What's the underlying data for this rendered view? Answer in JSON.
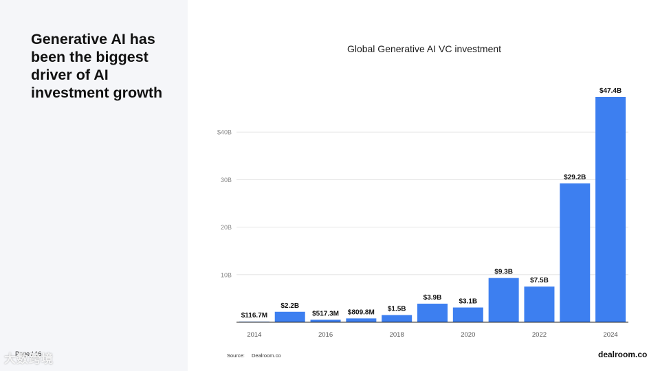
{
  "headline": "Generative AI has been the biggest driver of AI investment growth",
  "page_label": "Page / 16",
  "watermark": "大数跨境",
  "source_label": "Source:",
  "source_value": "Dealroom.co",
  "brand": "dealroom.co",
  "colors": {
    "bar": "#3d7ff0",
    "grid": "#e6e6e6",
    "axis": "#222222"
  },
  "chart_data": {
    "type": "bar",
    "title": "Global Generative AI VC investment",
    "categories": [
      "2014",
      "2015",
      "2016",
      "2017",
      "2018",
      "2019",
      "2020",
      "2021",
      "2022",
      "2023",
      "2024"
    ],
    "values": [
      0.1167,
      2.2,
      0.5173,
      0.8098,
      1.5,
      3.9,
      3.1,
      9.3,
      7.5,
      29.2,
      47.4
    ],
    "data_labels": [
      "$116.7M",
      "$2.2B",
      "$517.3M",
      "$809.8M",
      "$1.5B",
      "$3.9B",
      "$3.1B",
      "$9.3B",
      "$7.5B",
      "$29.2B",
      "$47.4B"
    ],
    "x_tick_labels": [
      "2014",
      "",
      "2016",
      "",
      "2018",
      "",
      "2020",
      "",
      "2022",
      "",
      "2024"
    ],
    "y_ticks": [
      10,
      20,
      30,
      40
    ],
    "y_tick_labels": [
      "10B",
      "20B",
      "30B",
      "$40B"
    ],
    "ylim": [
      0,
      47.4
    ],
    "xlabel": "",
    "ylabel": "",
    "grid": true
  }
}
